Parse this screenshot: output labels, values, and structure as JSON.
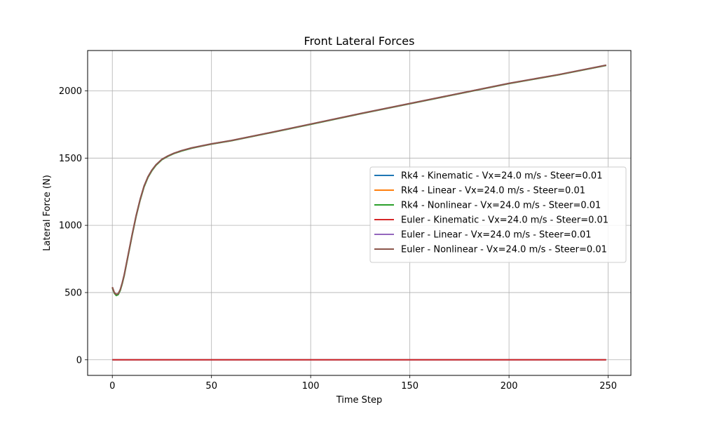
{
  "chart_data": {
    "type": "line",
    "title": "Front Lateral Forces",
    "xlabel": "Time Step",
    "ylabel": "Lateral Force (N)",
    "xlim": [
      -12.45,
      261.45
    ],
    "ylim": [
      -116,
      2300
    ],
    "xticks": [
      0,
      50,
      100,
      150,
      200,
      250
    ],
    "yticks": [
      0,
      500,
      1000,
      1500,
      2000
    ],
    "grid": true,
    "legend_position": "center-right",
    "series": [
      {
        "name": "Rk4 - Kinematic - Vx=24.0 m/s - Steer=0.01",
        "color": "#1f77b4",
        "x": [
          0,
          249
        ],
        "y": [
          0,
          0
        ]
      },
      {
        "name": "Rk4 - Linear - Vx=24.0 m/s - Steer=0.01",
        "color": "#ff7f0e",
        "x": [
          0,
          1,
          2,
          3,
          4,
          5,
          6,
          8,
          10,
          12,
          14,
          16,
          18,
          20,
          22,
          25,
          28,
          31,
          35,
          40,
          45,
          50,
          60,
          80,
          100,
          125,
          150,
          175,
          200,
          225,
          249
        ],
        "y": [
          540,
          500,
          485,
          490,
          520,
          570,
          630,
          780,
          930,
          1070,
          1190,
          1290,
          1360,
          1410,
          1448,
          1490,
          1515,
          1535,
          1555,
          1575,
          1590,
          1605,
          1630,
          1690,
          1752,
          1830,
          1905,
          1980,
          2055,
          2120,
          2190
        ]
      },
      {
        "name": "Rk4 - Nonlinear - Vx=24.0 m/s - Steer=0.01",
        "color": "#2ca02c",
        "x": [
          0,
          1,
          2,
          3,
          4,
          5,
          6,
          8,
          10,
          12,
          14,
          16,
          18,
          20,
          22,
          25,
          28,
          31,
          35,
          40,
          45,
          50,
          60,
          80,
          100,
          125,
          150,
          175,
          200,
          225,
          249
        ],
        "y": [
          535,
          495,
          478,
          485,
          515,
          565,
          625,
          775,
          925,
          1065,
          1185,
          1285,
          1357,
          1407,
          1446,
          1488,
          1513,
          1533,
          1553,
          1573,
          1589,
          1604,
          1629,
          1689,
          1751,
          1829,
          1904,
          1979,
          2054,
          2119,
          2189
        ]
      },
      {
        "name": "Euler - Kinematic - Vx=24.0 m/s - Steer=0.01",
        "color": "#d62728",
        "x": [
          0,
          249
        ],
        "y": [
          0,
          0
        ]
      },
      {
        "name": "Euler - Linear - Vx=24.0 m/s - Steer=0.01",
        "color": "#9467bd",
        "x": [
          0,
          1,
          2,
          3,
          4,
          5,
          6,
          8,
          10,
          12,
          14,
          16,
          18,
          20,
          22,
          25,
          28,
          31,
          35,
          40,
          45,
          50,
          60,
          80,
          100,
          125,
          150,
          175,
          200,
          225,
          249
        ],
        "y": [
          540,
          500,
          487,
          492,
          522,
          572,
          632,
          782,
          932,
          1072,
          1192,
          1292,
          1362,
          1412,
          1450,
          1491,
          1516,
          1536,
          1556,
          1576,
          1591,
          1606,
          1631,
          1691,
          1753,
          1831,
          1906,
          1981,
          2056,
          2121,
          2191
        ]
      },
      {
        "name": "Euler - Nonlinear - Vx=24.0 m/s - Steer=0.01",
        "color": "#8c564b",
        "x": [
          0,
          1,
          2,
          3,
          4,
          5,
          6,
          8,
          10,
          12,
          14,
          16,
          18,
          20,
          22,
          25,
          28,
          31,
          35,
          40,
          45,
          50,
          60,
          80,
          100,
          125,
          150,
          175,
          200,
          225,
          249
        ],
        "y": [
          540,
          500,
          487,
          492,
          522,
          572,
          632,
          782,
          932,
          1072,
          1192,
          1292,
          1362,
          1412,
          1450,
          1491,
          1516,
          1536,
          1556,
          1576,
          1591,
          1606,
          1631,
          1691,
          1753,
          1831,
          1906,
          1981,
          2056,
          2121,
          2191
        ]
      }
    ]
  }
}
